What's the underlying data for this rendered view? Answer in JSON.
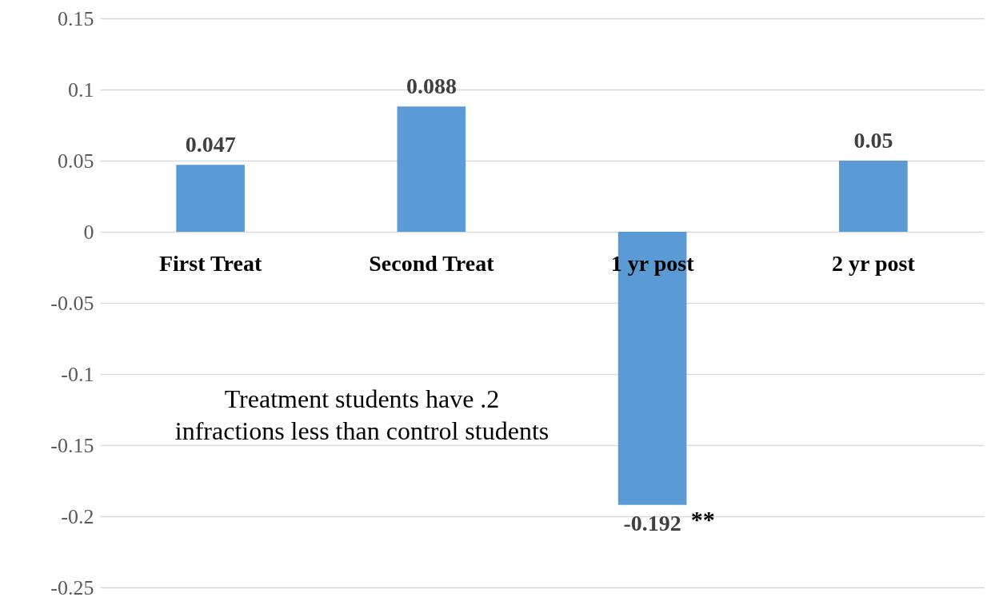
{
  "chart_data": {
    "type": "bar",
    "categories": [
      "First Treat",
      "Second Treat",
      "1 yr post",
      "2 yr post"
    ],
    "values": [
      0.047,
      0.088,
      -0.192,
      0.05
    ],
    "color": "#5b9bd5",
    "ylim": [
      -0.25,
      0.15
    ],
    "yticks": [
      -0.25,
      -0.2,
      -0.15,
      -0.1,
      -0.05,
      0,
      0.05,
      0.1,
      0.15
    ],
    "grid": "y",
    "data_labels": true,
    "annotations": [
      "Treatment students have .2\ninfractions less than control students",
      {
        "text": "**",
        "x": "1 yr post",
        "y": -0.192
      }
    ]
  }
}
